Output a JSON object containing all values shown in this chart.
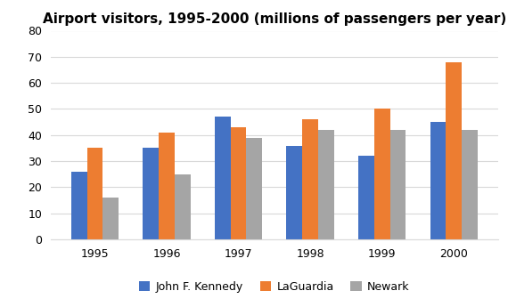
{
  "title": "Airport visitors, 1995-2000 (millions of passengers per year)",
  "years": [
    1995,
    1996,
    1997,
    1998,
    1999,
    2000
  ],
  "series": [
    {
      "label": "John F. Kennedy",
      "color": "#4472C4",
      "values": [
        26,
        35,
        47,
        36,
        32,
        45
      ]
    },
    {
      "label": "LaGuardia",
      "color": "#ED7D31",
      "values": [
        35,
        41,
        43,
        46,
        50,
        68
      ]
    },
    {
      "label": "Newark",
      "color": "#A5A5A5",
      "values": [
        16,
        25,
        39,
        42,
        42,
        42
      ]
    }
  ],
  "ylim": [
    0,
    80
  ],
  "yticks": [
    0,
    10,
    20,
    30,
    40,
    50,
    60,
    70,
    80
  ],
  "bar_width": 0.22,
  "legend_ncol": 3,
  "background_color": "#ffffff",
  "grid_color": "#d9d9d9",
  "title_fontsize": 11,
  "tick_fontsize": 9,
  "legend_fontsize": 9
}
